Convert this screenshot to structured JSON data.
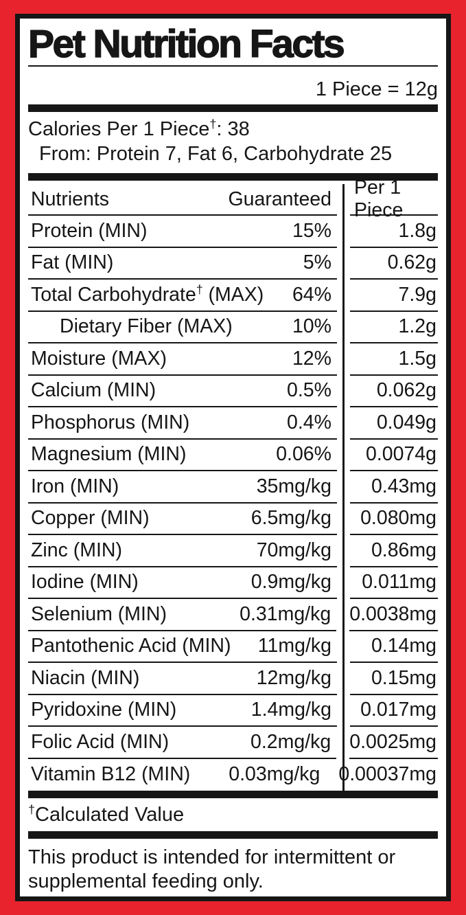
{
  "colors": {
    "frame_red": "#E8232E",
    "ink_black": "#161616",
    "panel_white": "#ffffff"
  },
  "header": {
    "title": "Pet Nutrition Facts",
    "serving_note": "1 Piece = 12g"
  },
  "calories": {
    "line1": "Calories Per 1 Piece†: 38",
    "line2": "From: Protein 7, Fat 6, Carbohydrate 25"
  },
  "table": {
    "columns": {
      "nutrients": "Nutrients",
      "guaranteed": "Guaranteed",
      "per_piece": "Per 1 Piece"
    },
    "rows": [
      {
        "name": "Protein (MIN)",
        "guaranteed": "15%",
        "per_piece": "1.8g",
        "indent": false
      },
      {
        "name": "Fat (MIN)",
        "guaranteed": "5%",
        "per_piece": "0.62g",
        "indent": false
      },
      {
        "name": "Total Carbohydrate† (MAX)",
        "guaranteed": "64%",
        "per_piece": "7.9g",
        "indent": false
      },
      {
        "name": "Dietary Fiber (MAX)",
        "guaranteed": "10%",
        "per_piece": "1.2g",
        "indent": true
      },
      {
        "name": "Moisture (MAX)",
        "guaranteed": "12%",
        "per_piece": "1.5g",
        "indent": false
      },
      {
        "name": "Calcium (MIN)",
        "guaranteed": "0.5%",
        "per_piece": "0.062g",
        "indent": false
      },
      {
        "name": "Phosphorus (MIN)",
        "guaranteed": "0.4%",
        "per_piece": "0.049g",
        "indent": false
      },
      {
        "name": "Magnesium (MIN)",
        "guaranteed": "0.06%",
        "per_piece": "0.0074g",
        "indent": false
      },
      {
        "name": "Iron (MIN)",
        "guaranteed": "35mg/kg",
        "per_piece": "0.43mg",
        "indent": false
      },
      {
        "name": "Copper (MIN)",
        "guaranteed": "6.5mg/kg",
        "per_piece": "0.080mg",
        "indent": false
      },
      {
        "name": "Zinc (MIN)",
        "guaranteed": "70mg/kg",
        "per_piece": "0.86mg",
        "indent": false
      },
      {
        "name": "Iodine (MIN)",
        "guaranteed": "0.9mg/kg",
        "per_piece": "0.011mg",
        "indent": false
      },
      {
        "name": "Selenium (MIN)",
        "guaranteed": "0.31mg/kg",
        "per_piece": "0.0038mg",
        "indent": false
      },
      {
        "name": "Pantothenic Acid (MIN)",
        "guaranteed": "11mg/kg",
        "per_piece": "0.14mg",
        "indent": false
      },
      {
        "name": "Niacin (MIN)",
        "guaranteed": "12mg/kg",
        "per_piece": "0.15mg",
        "indent": false
      },
      {
        "name": "Pyridoxine (MIN)",
        "guaranteed": "1.4mg/kg",
        "per_piece": "0.017mg",
        "indent": false
      },
      {
        "name": "Folic Acid (MIN)",
        "guaranteed": "0.2mg/kg",
        "per_piece": "0.0025mg",
        "indent": false
      },
      {
        "name": "Vitamin B12 (MIN)",
        "guaranteed": "0.03mg/kg",
        "per_piece": "0.00037mg",
        "indent": false
      }
    ]
  },
  "footnote": "†Calculated Value",
  "disclaimer": {
    "line1": "This product is intended for intermittent or",
    "line2": "supplemental feeding only."
  }
}
